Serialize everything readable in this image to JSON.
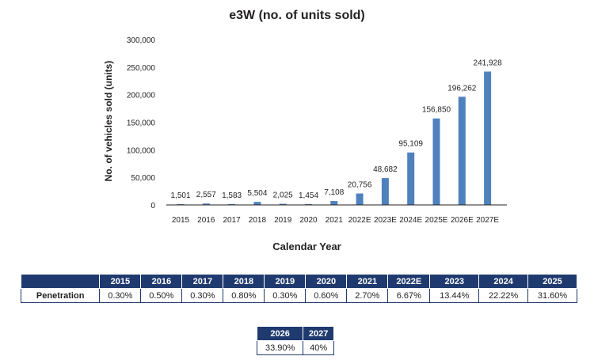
{
  "chart_data": {
    "type": "bar",
    "title": "e3W (no. of units sold)",
    "xlabel": "Calendar Year",
    "ylabel": "No. of vehicles sold (units)",
    "ylim": [
      0,
      300000
    ],
    "yticks": [
      "300,000",
      "250,000",
      "200,000",
      "150,000",
      "100,000",
      "50,000",
      "0"
    ],
    "categories": [
      "2015",
      "2016",
      "2017",
      "2018",
      "2019",
      "2020",
      "2021",
      "2022E",
      "2023E",
      "2024E",
      "2025E",
      "2026E",
      "2027E"
    ],
    "values": [
      1501,
      2557,
      1583,
      5504,
      2025,
      1454,
      7108,
      20756,
      48682,
      95109,
      156850,
      196262,
      241928
    ],
    "labels": [
      "1,501",
      "2,557",
      "1,583",
      "5,504",
      "2,025",
      "1,454",
      "7,108",
      "20,756",
      "48,682",
      "95,109",
      "156,850",
      "196,262",
      "241,928"
    ],
    "bar_color": "#4f81bd",
    "grid": false
  },
  "table1": {
    "headers": [
      "",
      "2015",
      "2016",
      "2017",
      "2018",
      "2019",
      "2020",
      "2021",
      "2022E",
      "2023",
      "2024",
      "2025"
    ],
    "row_label": "Penetration",
    "values": [
      "0.30%",
      "0.50%",
      "0.30%",
      "0.80%",
      "0.30%",
      "0.60%",
      "2.70%",
      "6.67%",
      "13.44%",
      "22.22%",
      "31.60%"
    ]
  },
  "table2": {
    "headers": [
      "2026",
      "2027"
    ],
    "values": [
      "33.90%",
      "40%"
    ]
  },
  "colors": {
    "header_bg": "#1f3a6e",
    "bar": "#4f81bd"
  }
}
